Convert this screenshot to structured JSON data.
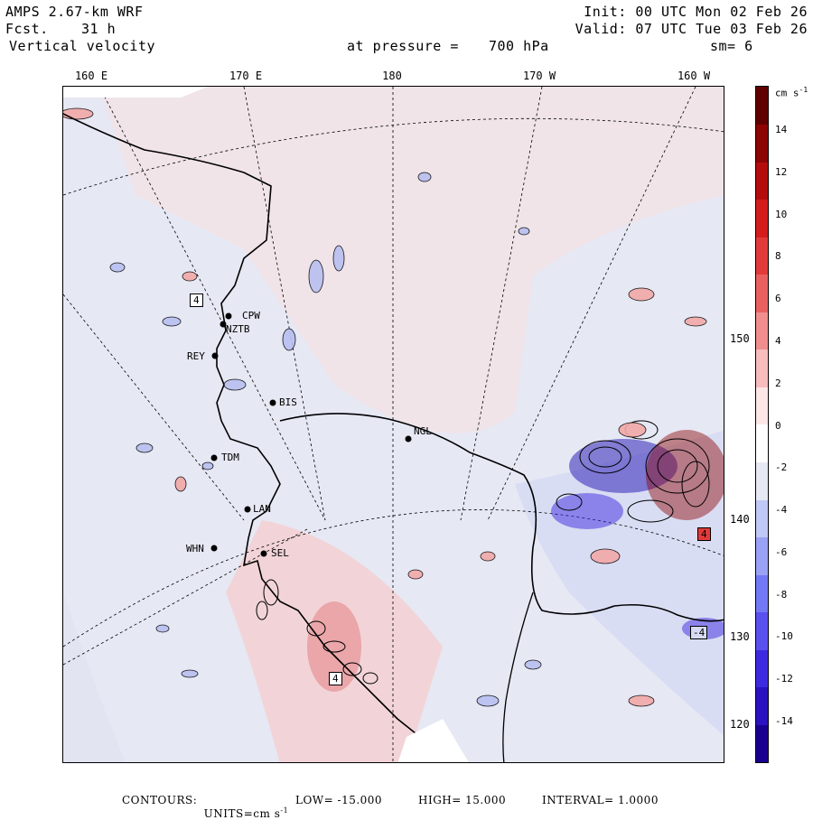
{
  "header": {
    "model": "AMPS 2.67-km WRF",
    "forecast_label": "Fcst.",
    "forecast_hours": "31 h",
    "field": "Vertical velocity",
    "init": "Init: 00 UTC Mon 02 Feb 26",
    "valid": "Valid: 07 UTC Tue 03 Feb 26",
    "pressure_label": "at pressure =",
    "pressure_value": "700 hPa",
    "smoothing": "sm= 6"
  },
  "longitude_labels": [
    "160 E",
    "170 E",
    "180",
    "170 W",
    "160 W"
  ],
  "latitude_labels": [
    "150 W",
    "140 W",
    "130 W",
    "120 W"
  ],
  "stations": [
    "CPW",
    "NZTB",
    "REY",
    "BIS",
    "NGL",
    "TDM",
    "LAN",
    "WHN",
    "SEL"
  ],
  "boxed_labels": [
    "4",
    "4",
    "-4",
    "4"
  ],
  "colorbar": {
    "units": "cm s",
    "units_exp": "-1",
    "tick_labels": [
      "14",
      "12",
      "10",
      "8",
      "6",
      "4",
      "2",
      "0",
      "-2",
      "-4",
      "-6",
      "-8",
      "-10",
      "-12",
      "-14"
    ],
    "colors": [
      "#1a0090",
      "#2a12c0",
      "#3d2ae0",
      "#5a50f0",
      "#7378f5",
      "#9aa2f5",
      "#c0c8f5",
      "#e6e8f4",
      "#ffffff",
      "#fde6e6",
      "#f7bcbc",
      "#f08e8e",
      "#ea6060",
      "#e23a3a",
      "#d41c1c",
      "#b40c0c",
      "#8c0404",
      "#600000"
    ]
  },
  "footer": {
    "contours_label": "CONTOURS:",
    "units": "UNITS=cm s",
    "units_exp": "-1",
    "low": "LOW= -15.000",
    "high": "HIGH= 15.000",
    "interval": "INTERVAL= 1.0000"
  }
}
